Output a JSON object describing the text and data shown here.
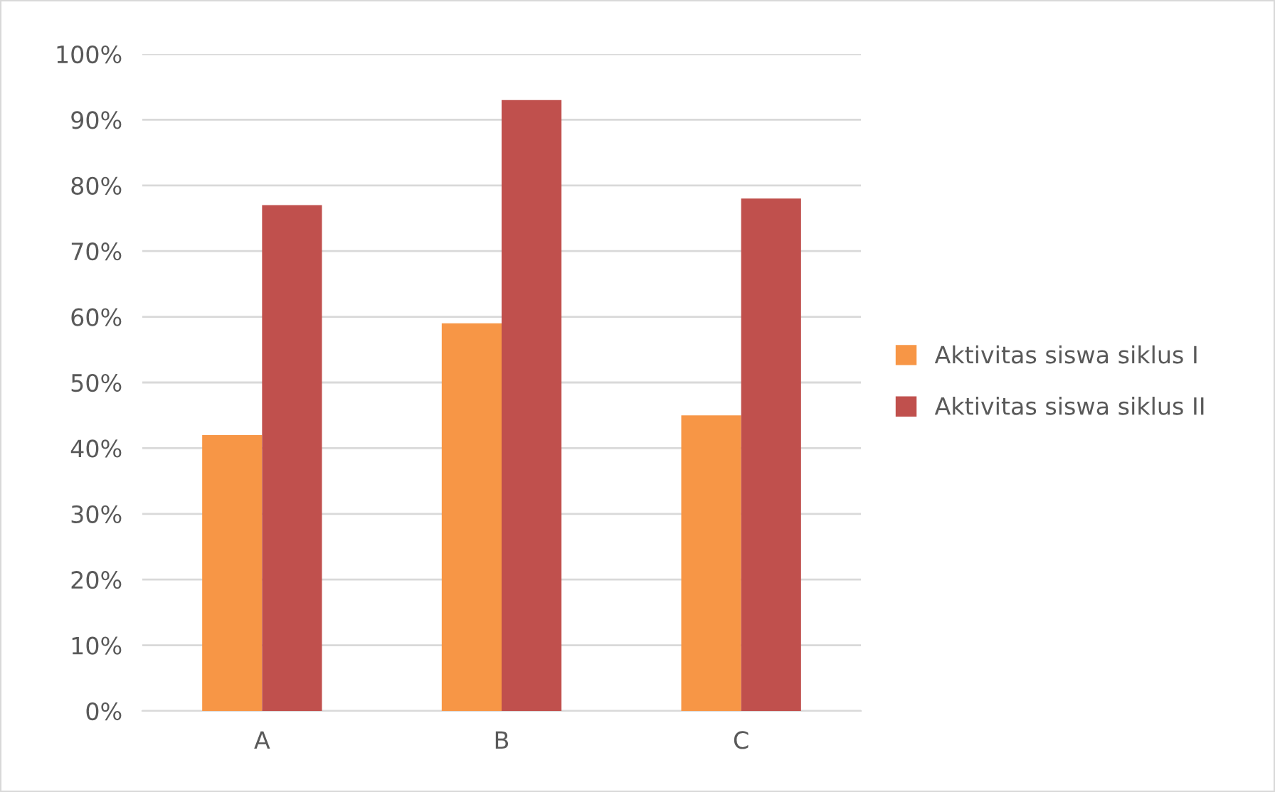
{
  "chart_data": {
    "type": "bar",
    "categories": [
      "A",
      "B",
      "C"
    ],
    "series": [
      {
        "name": "Aktivitas siswa siklus I",
        "color": "#f79646",
        "values": [
          42,
          59,
          45
        ]
      },
      {
        "name": "Aktivitas siswa siklus II",
        "color": "#c0504d",
        "values": [
          77,
          93,
          78
        ]
      }
    ],
    "ylim": [
      0,
      100
    ],
    "yticks": [
      {
        "value": 0,
        "label": "0%"
      },
      {
        "value": 10,
        "label": "10%"
      },
      {
        "value": 20,
        "label": "20%"
      },
      {
        "value": 30,
        "label": "30%"
      },
      {
        "value": 40,
        "label": "40%"
      },
      {
        "value": 50,
        "label": "50%"
      },
      {
        "value": 60,
        "label": "60%"
      },
      {
        "value": 70,
        "label": "70%"
      },
      {
        "value": 80,
        "label": "80%"
      },
      {
        "value": 90,
        "label": "90%"
      },
      {
        "value": 100,
        "label": "100%"
      }
    ],
    "grid": "y",
    "legend": "right"
  }
}
